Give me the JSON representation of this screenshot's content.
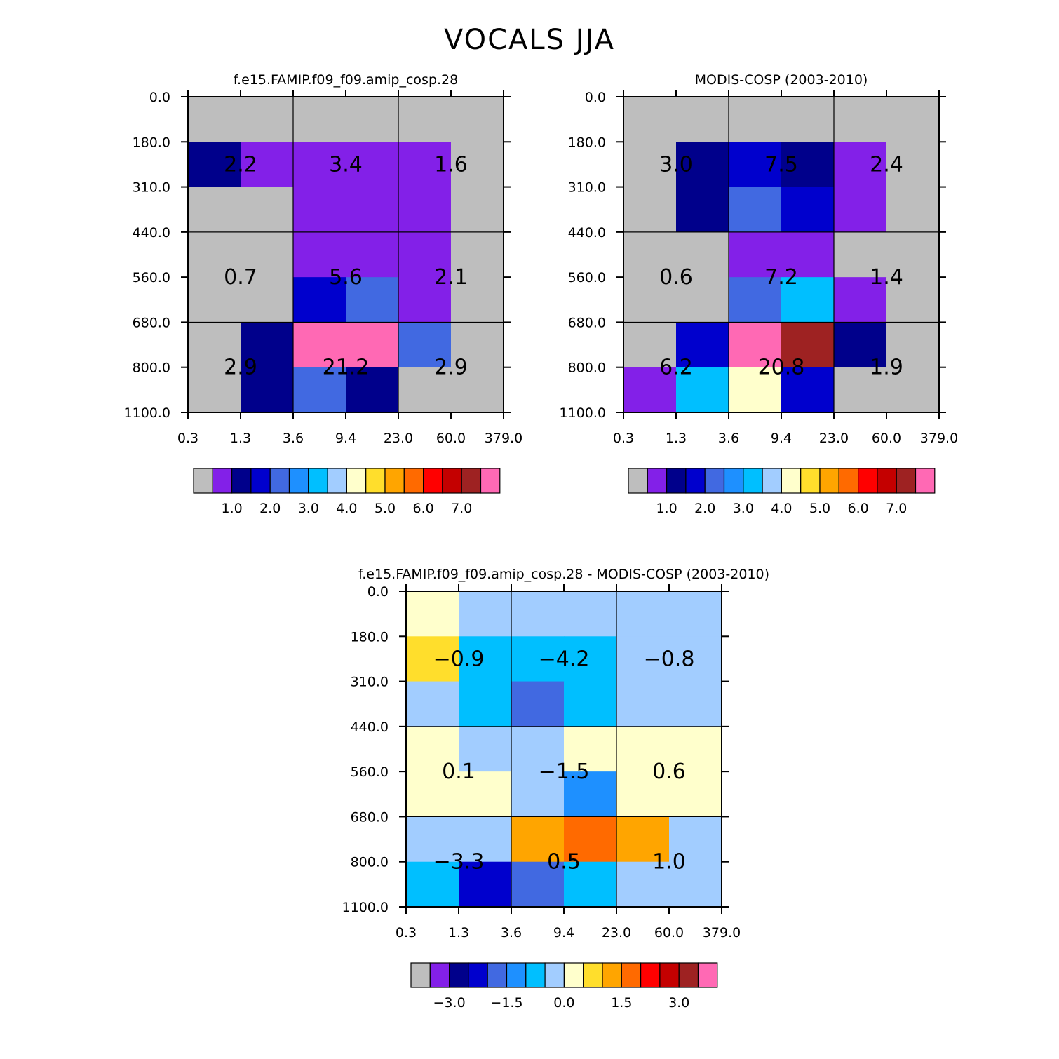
{
  "figure_title": "VOCALS JJA",
  "chart_data": [
    {
      "type": "heatmap",
      "title": "f.e15.FAMIP.f09_f09.amip_cosp.28",
      "x_ticks": [
        "0.3",
        "1.3",
        "3.6",
        "9.4",
        "23.0",
        "60.0",
        "379.0"
      ],
      "y_ticks": [
        "0.0",
        "180.0",
        "310.0",
        "440.0",
        "560.0",
        "680.0",
        "800.0",
        "1100.0"
      ],
      "cell_colors": [
        [
          0,
          0,
          0,
          0,
          0,
          0
        ],
        [
          2,
          1,
          1,
          1,
          1,
          0
        ],
        [
          0,
          0,
          1,
          1,
          1,
          0
        ],
        [
          0,
          0,
          1,
          1,
          1,
          0
        ],
        [
          0,
          0,
          3,
          4,
          1,
          0
        ],
        [
          0,
          2,
          15,
          15,
          4,
          0
        ],
        [
          0,
          2,
          4,
          2,
          0,
          0
        ]
      ],
      "annotations": [
        [
          [
            "2.2",
            0
          ],
          [
            "3.4",
            1
          ],
          [
            "1.6",
            2
          ]
        ],
        [
          [
            "0.7",
            0
          ],
          [
            "5.6",
            1
          ],
          [
            "2.1",
            2
          ]
        ],
        [
          [
            "2.9",
            0
          ],
          [
            "21.2",
            1
          ],
          [
            "2.9",
            2
          ]
        ]
      ],
      "colorbar": {
        "colors": [
          "#bebebe",
          "#8320e8",
          "#00008b",
          "#0000cd",
          "#4169e1",
          "#1e90ff",
          "#00bfff",
          "#a2cdff",
          "#ffffcc",
          "#ffde2c",
          "#ffa500",
          "#ff6a00",
          "#ff0000",
          "#c40000",
          "#9e2222",
          "#ff69b4"
        ],
        "labels": [
          "1.0",
          "2.0",
          "3.0",
          "4.0",
          "5.0",
          "6.0",
          "7.0"
        ],
        "label_boundaries": [
          2,
          4,
          6,
          8,
          10,
          12,
          14
        ]
      }
    },
    {
      "type": "heatmap",
      "title": "MODIS-COSP (2003-2010)",
      "x_ticks": [
        "0.3",
        "1.3",
        "3.6",
        "9.4",
        "23.0",
        "60.0",
        "379.0"
      ],
      "y_ticks": [
        "0.0",
        "180.0",
        "310.0",
        "440.0",
        "560.0",
        "680.0",
        "800.0",
        "1100.0"
      ],
      "cell_colors": [
        [
          0,
          0,
          0,
          0,
          0,
          0
        ],
        [
          0,
          2,
          3,
          2,
          1,
          0
        ],
        [
          0,
          2,
          4,
          3,
          1,
          0
        ],
        [
          0,
          0,
          1,
          1,
          0,
          0
        ],
        [
          0,
          0,
          4,
          6,
          1,
          0
        ],
        [
          0,
          3,
          15,
          14,
          2,
          0
        ],
        [
          1,
          6,
          8,
          3,
          0,
          0
        ]
      ],
      "annotations": [
        [
          [
            "3.0",
            0
          ],
          [
            "7.5",
            1
          ],
          [
            "2.4",
            2
          ]
        ],
        [
          [
            "0.6",
            0
          ],
          [
            "7.2",
            1
          ],
          [
            "1.4",
            2
          ]
        ],
        [
          [
            "6.2",
            0
          ],
          [
            "20.8",
            1
          ],
          [
            "1.9",
            2
          ]
        ]
      ],
      "colorbar": {
        "colors": [
          "#bebebe",
          "#8320e8",
          "#00008b",
          "#0000cd",
          "#4169e1",
          "#1e90ff",
          "#00bfff",
          "#a2cdff",
          "#ffffcc",
          "#ffde2c",
          "#ffa500",
          "#ff6a00",
          "#ff0000",
          "#c40000",
          "#9e2222",
          "#ff69b4"
        ],
        "labels": [
          "1.0",
          "2.0",
          "3.0",
          "4.0",
          "5.0",
          "6.0",
          "7.0"
        ],
        "label_boundaries": [
          2,
          4,
          6,
          8,
          10,
          12,
          14
        ]
      }
    },
    {
      "type": "heatmap",
      "title": "f.e15.FAMIP.f09_f09.amip_cosp.28 - MODIS-COSP (2003-2010)",
      "x_ticks": [
        "0.3",
        "1.3",
        "3.6",
        "9.4",
        "23.0",
        "60.0",
        "379.0"
      ],
      "y_ticks": [
        "0.0",
        "180.0",
        "310.0",
        "440.0",
        "560.0",
        "680.0",
        "800.0",
        "1100.0"
      ],
      "cell_colors": [
        [
          8,
          7,
          7,
          7,
          7,
          7
        ],
        [
          9,
          6,
          6,
          6,
          7,
          7
        ],
        [
          7,
          6,
          4,
          6,
          7,
          7
        ],
        [
          8,
          7,
          7,
          8,
          8,
          8
        ],
        [
          8,
          8,
          7,
          5,
          8,
          8
        ],
        [
          7,
          7,
          10,
          11,
          10,
          7
        ],
        [
          6,
          3,
          4,
          6,
          7,
          7
        ]
      ],
      "annotations": [
        [
          [
            "-0.9",
            0
          ],
          [
            "-4.2",
            1
          ],
          [
            "-0.8",
            2
          ]
        ],
        [
          [
            "0.1",
            0
          ],
          [
            "-1.5",
            1
          ],
          [
            "0.6",
            2
          ]
        ],
        [
          [
            "-3.3",
            0
          ],
          [
            "0.5",
            1
          ],
          [
            "1.0",
            2
          ]
        ]
      ],
      "colorbar": {
        "colors": [
          "#bebebe",
          "#8320e8",
          "#00008b",
          "#0000cd",
          "#4169e1",
          "#1e90ff",
          "#00bfff",
          "#a2cdff",
          "#ffffcc",
          "#ffde2c",
          "#ffa500",
          "#ff6a00",
          "#ff0000",
          "#c40000",
          "#9e2222",
          "#ff69b4"
        ],
        "labels": [
          "-3.0",
          "-1.5",
          "0.0",
          "1.5",
          "3.0"
        ],
        "label_boundaries": [
          2,
          5,
          8,
          11,
          14
        ]
      }
    }
  ]
}
